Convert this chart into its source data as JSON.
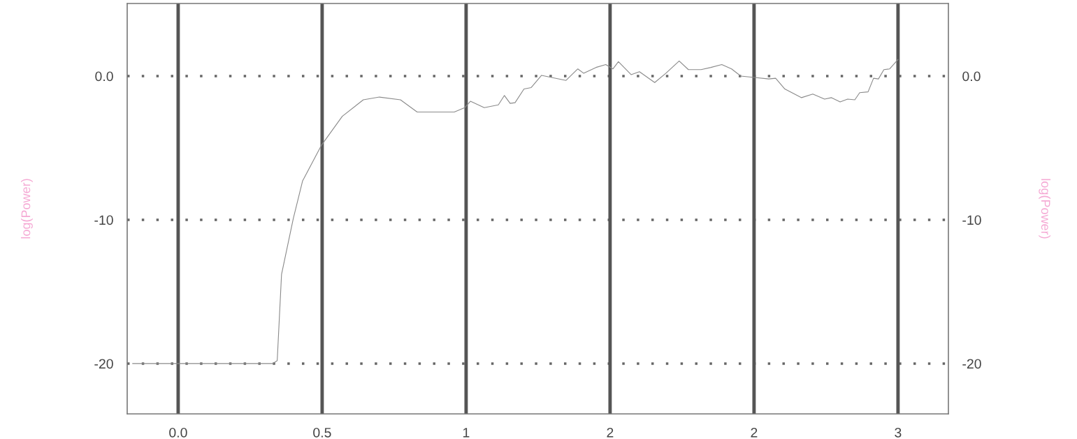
{
  "chart_data": {
    "type": "line",
    "ylabel": "log(Power)",
    "y2label": "log(Power)",
    "xlim": [
      -0.177,
      2.675
    ],
    "ylim": [
      -23.5,
      5.05
    ],
    "y2lim": [
      -23.5,
      5.05
    ],
    "xticks": [
      {
        "value": 0,
        "label": "0.0"
      },
      {
        "value": 0.5,
        "label": "0.5"
      },
      {
        "value": 1,
        "label": "1"
      },
      {
        "value": 1.5,
        "label": "2"
      },
      {
        "value": 2,
        "label": "2"
      },
      {
        "value": 2.5,
        "label": "3"
      }
    ],
    "yticks": [
      {
        "value": 0,
        "label": "0.0"
      },
      -10,
      -20
    ],
    "y2ticks": [
      {
        "value": 0,
        "label": "0.0"
      },
      -10,
      -20
    ],
    "grid": true,
    "marker": "none",
    "line_style": "solid",
    "x": [
      -0.158,
      0.109,
      0.328,
      0.344,
      0.359,
      0.4,
      0.432,
      0.498,
      0.57,
      0.643,
      0.699,
      0.772,
      0.83,
      0.903,
      0.959,
      0.995,
      1.015,
      1.063,
      1.112,
      1.133,
      1.153,
      1.17,
      1.201,
      1.226,
      1.262,
      1.347,
      1.388,
      1.408,
      1.451,
      1.485,
      1.51,
      1.529,
      1.573,
      1.602,
      1.655,
      1.694,
      1.74,
      1.772,
      1.816,
      1.85,
      1.888,
      1.922,
      1.954,
      2.002,
      2.051,
      2.075,
      2.107,
      2.165,
      2.204,
      2.245,
      2.269,
      2.299,
      2.325,
      2.35,
      2.367,
      2.396,
      2.415,
      2.432,
      2.451,
      2.471,
      2.5
    ],
    "series": [
      {
        "color": "#8a8a8a",
        "values": [
          -20,
          -20,
          -20,
          -19.8,
          -13.8,
          -9.9,
          -7.3,
          -4.8,
          -2.8,
          -1.65,
          -1.46,
          -1.65,
          -2.5,
          -2.5,
          -2.5,
          -2.2,
          -1.75,
          -2.2,
          -2.0,
          -1.35,
          -1.9,
          -1.85,
          -0.9,
          -0.8,
          0.05,
          -0.3,
          0.5,
          0.2,
          0.6,
          0.8,
          0.5,
          1.0,
          0.1,
          0.3,
          -0.45,
          0.2,
          1.05,
          0.45,
          0.45,
          0.6,
          0.8,
          0.5,
          0,
          -0.1,
          -0.2,
          -0.15,
          -0.9,
          -1.5,
          -1.25,
          -1.6,
          -1.5,
          -1.8,
          -1.6,
          -1.65,
          -1.15,
          -1.1,
          -0.15,
          -0.2,
          0.45,
          0.5,
          1.15
        ]
      }
    ]
  }
}
